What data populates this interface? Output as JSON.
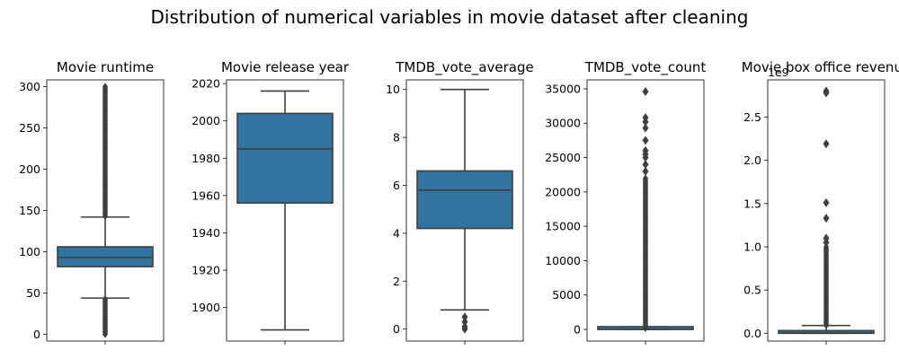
{
  "suptitle": "Distribution of numerical variables in movie dataset after cleaning",
  "colors": {
    "box": "#3274a1",
    "line": "#3f3f3f",
    "outlier": "#3f3f3f"
  },
  "chart_data": [
    {
      "type": "boxplot",
      "title": "Movie runtime",
      "ylim": [
        -8,
        308
      ],
      "yticks": [
        0,
        50,
        100,
        150,
        200,
        250,
        300
      ],
      "ytick_labels": [
        "0",
        "50",
        "100",
        "150",
        "200",
        "250",
        "300"
      ],
      "offset_label": "",
      "box": {
        "whisker_low": 44,
        "q1": 82,
        "median": 93,
        "q3": 106,
        "whisker_high": 142
      },
      "outliers": {
        "dense_ranges": [
          [
            0,
            43
          ],
          [
            143,
            300
          ]
        ],
        "points": []
      }
    },
    {
      "type": "boxplot",
      "title": "Movie release year",
      "ylim": [
        1882,
        2022
      ],
      "yticks": [
        1900,
        1920,
        1940,
        1960,
        1980,
        2000,
        2020
      ],
      "ytick_labels": [
        "1900",
        "1920",
        "1940",
        "1960",
        "1980",
        "2000",
        "2020"
      ],
      "offset_label": "",
      "box": {
        "whisker_low": 1888,
        "q1": 1956,
        "median": 1985,
        "q3": 2004,
        "whisker_high": 2016
      },
      "outliers": {
        "dense_ranges": [],
        "points": []
      }
    },
    {
      "type": "boxplot",
      "title": "TMDB_vote_average",
      "ylim": [
        -0.5,
        10.4
      ],
      "yticks": [
        0,
        2,
        4,
        6,
        8,
        10
      ],
      "ytick_labels": [
        "0",
        "2",
        "4",
        "6",
        "8",
        "10"
      ],
      "offset_label": "",
      "box": {
        "whisker_low": 0.8,
        "q1": 4.2,
        "median": 5.8,
        "q3": 6.6,
        "whisker_high": 10
      },
      "outliers": {
        "dense_ranges": [],
        "points": [
          0,
          0.1,
          0.3,
          0.5
        ]
      }
    },
    {
      "type": "boxplot",
      "title": "TMDB_vote_count",
      "ylim": [
        -1700,
        36300
      ],
      "yticks": [
        0,
        5000,
        10000,
        15000,
        20000,
        25000,
        30000,
        35000
      ],
      "ytick_labels": [
        "0",
        "5000",
        "10000",
        "15000",
        "20000",
        "25000",
        "30000",
        "35000"
      ],
      "offset_label": "",
      "box": {
        "whisker_low": 0,
        "q1": 0,
        "median": 0,
        "q3": 20,
        "whisker_high": 150
      },
      "outliers": {
        "dense_ranges": [
          [
            150,
            22000
          ]
        ],
        "points": [
          23000,
          24000,
          25000,
          25500,
          26000,
          27500,
          29300,
          30200,
          30800,
          34600
        ]
      }
    },
    {
      "type": "boxplot",
      "title": "Movie box office revenue",
      "ylim": [
        -0.09,
        2.93
      ],
      "yticks": [
        0,
        0.5,
        1.0,
        1.5,
        2.0,
        2.5
      ],
      "ytick_labels": [
        "0.0",
        "0.5",
        "1.0",
        "1.5",
        "2.0",
        "2.5"
      ],
      "offset_label": "1e9",
      "box": {
        "whisker_low": 0,
        "q1": 0.0,
        "median": 0.005,
        "q3": 0.03,
        "whisker_high": 0.09
      },
      "outliers": {
        "dense_ranges": [
          [
            0.09,
            1.0
          ]
        ],
        "points": [
          1.05,
          1.1,
          1.33,
          1.51,
          2.19,
          2.78,
          2.8
        ]
      }
    }
  ]
}
